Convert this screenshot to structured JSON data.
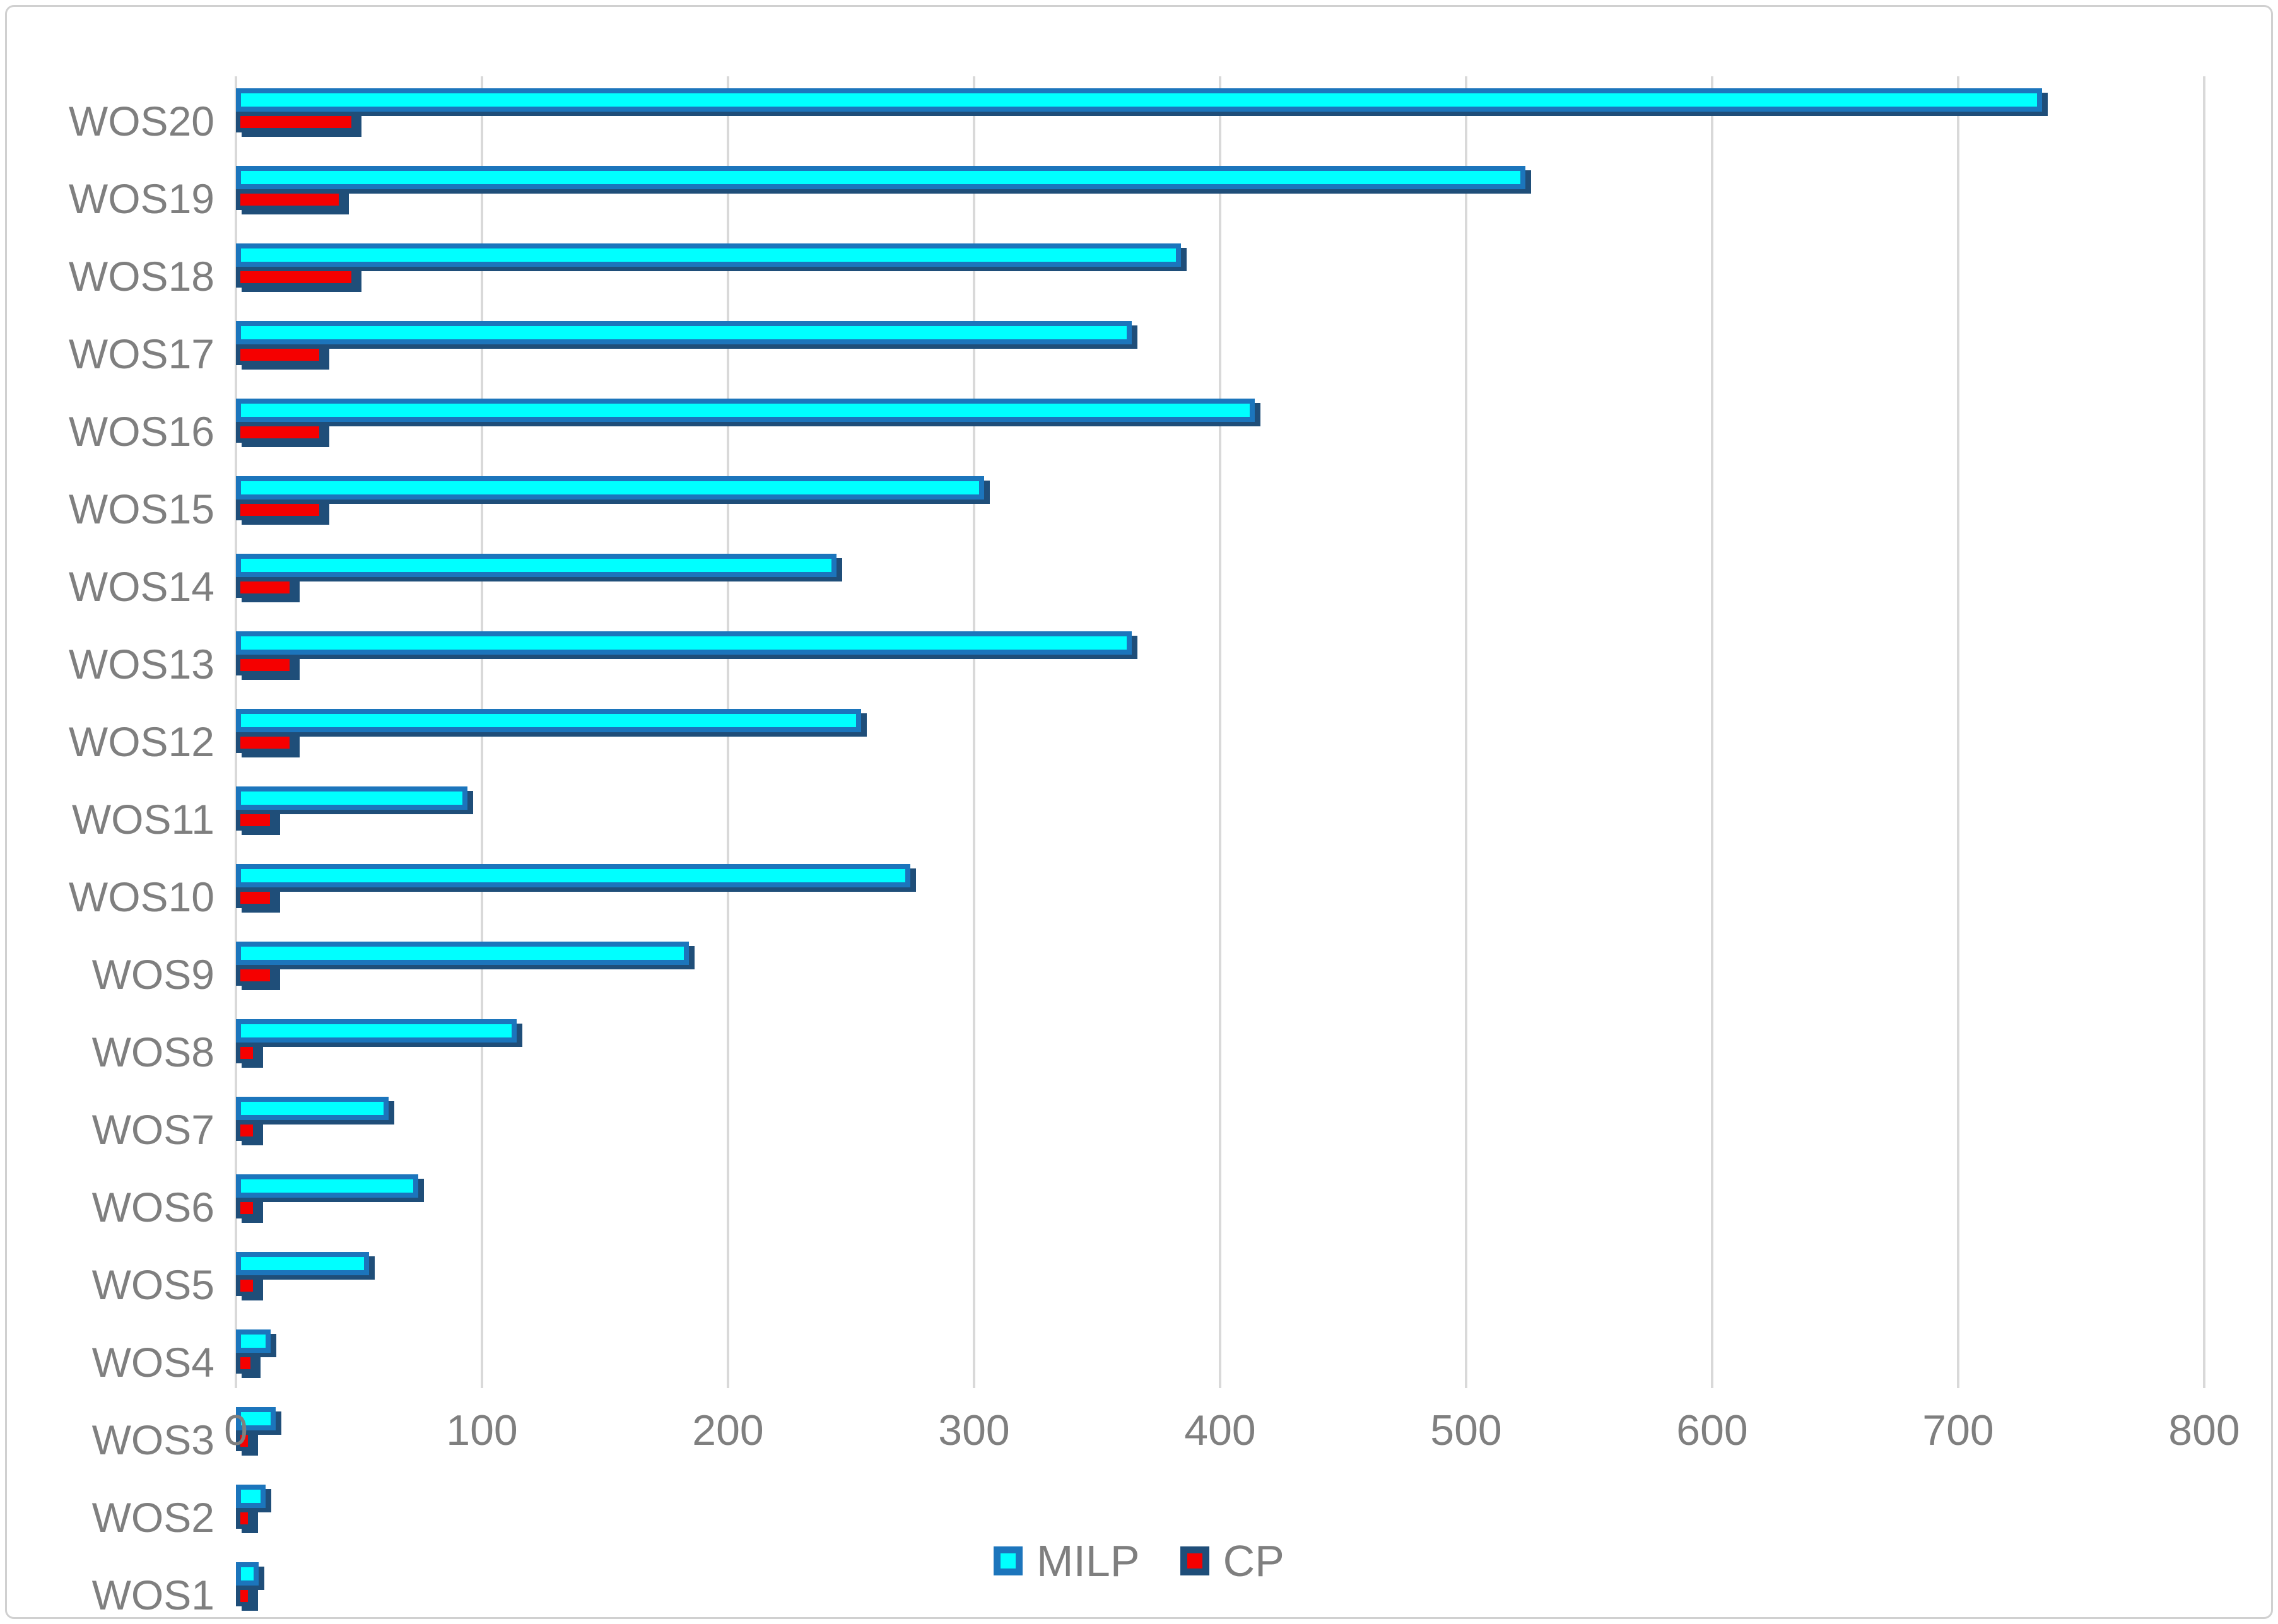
{
  "chart_data": {
    "type": "bar",
    "orientation": "horizontal",
    "title": "",
    "xlabel": "",
    "ylabel": "",
    "xlim": [
      0,
      800
    ],
    "x_ticks": [
      0,
      100,
      200,
      300,
      400,
      500,
      600,
      700,
      800
    ],
    "grid": "vertical gridlines on",
    "legend_position": "bottom-center",
    "categories_top_to_bottom": [
      "WOS20",
      "WOS19",
      "WOS18",
      "WOS17",
      "WOS16",
      "WOS15",
      "WOS14",
      "WOS13",
      "WOS12",
      "WOS11",
      "WOS10",
      "WOS9",
      "WOS8",
      "WOS7",
      "WOS6",
      "WOS5",
      "WOS4",
      "WOS3",
      "WOS2",
      "WOS1"
    ],
    "series": [
      {
        "name": "MILP",
        "values": [
          730,
          520,
          380,
          360,
          410,
          300,
          240,
          360,
          250,
          90,
          270,
          180,
          110,
          58,
          70,
          50,
          10,
          12,
          8,
          5
        ]
      },
      {
        "name": "CP",
        "values": [
          45,
          40,
          45,
          32,
          32,
          32,
          20,
          20,
          20,
          12,
          12,
          12,
          5,
          5,
          5,
          5,
          4,
          3,
          3,
          3
        ]
      }
    ],
    "colors": {
      "milp_fill": "#00FFFF",
      "milp_border": "#1C75BC",
      "cp_fill": "#F50000",
      "cp_border": "#1F4E79",
      "bar_shadow": "#1F4E79",
      "axis_text": "#7F7F7F",
      "gridline": "#D9D9D9",
      "frame_border": "#D0D0D0",
      "background": "#FFFFFF"
    }
  },
  "legend": {
    "items": [
      {
        "label": "MILP"
      },
      {
        "label": "CP"
      }
    ]
  }
}
